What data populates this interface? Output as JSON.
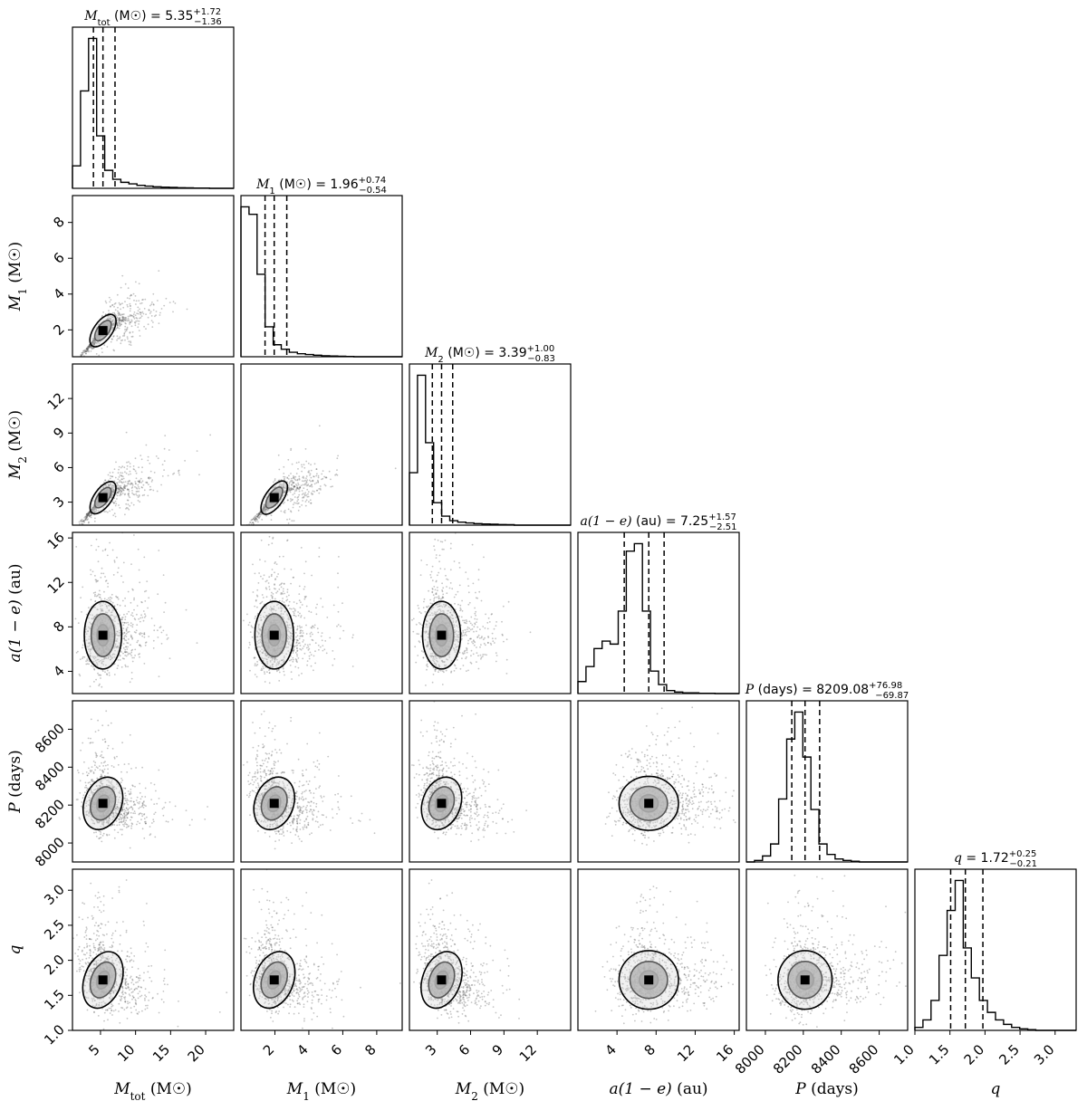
{
  "chart_data": {
    "type": "corner",
    "parameters": [
      {
        "key": "Mtot",
        "sym": "M",
        "sub": "tot",
        "unit": "(M☉)",
        "median": "5.35",
        "plus": "+1.72",
        "minus": "−1.36",
        "range": [
          1,
          24
        ],
        "ticks": [
          5,
          10,
          15,
          20
        ],
        "tick_labels": [
          "5",
          "10",
          "15",
          "20"
        ],
        "hist": [
          0.15,
          0.65,
          1.0,
          0.35,
          0.12,
          0.06,
          0.04,
          0.03,
          0.02,
          0.015,
          0.01,
          0.008,
          0.006,
          0.004,
          0.003,
          0.002,
          0.002,
          0.0,
          0.0,
          0.0
        ],
        "quantiles": [
          3.99,
          5.35,
          7.07
        ]
      },
      {
        "key": "M1",
        "sym": "M",
        "sub": "1",
        "unit": "(M☉)",
        "median": "1.96",
        "plus": "+0.74",
        "minus": "−0.54",
        "range": [
          0,
          9.5
        ],
        "ticks": [
          2,
          4,
          6,
          8
        ],
        "tick_labels": [
          "2",
          "4",
          "6",
          "8"
        ],
        "hist": [
          1.0,
          0.95,
          0.55,
          0.2,
          0.08,
          0.05,
          0.03,
          0.02,
          0.015,
          0.01,
          0.006,
          0.005,
          0.003,
          0.002,
          0.0,
          0.0,
          0.0,
          0.0,
          0.0,
          0.0
        ],
        "quantiles": [
          1.42,
          1.96,
          2.7
        ]
      },
      {
        "key": "M2",
        "sym": "M",
        "sub": "2",
        "unit": "(M☉)",
        "median": "3.39",
        "plus": "+1.00",
        "minus": "−0.83",
        "range": [
          0.5,
          15
        ],
        "ticks": [
          3,
          6,
          9,
          12
        ],
        "tick_labels": [
          "3",
          "6",
          "9",
          "12"
        ],
        "hist": [
          0.35,
          1.0,
          0.55,
          0.15,
          0.06,
          0.03,
          0.02,
          0.015,
          0.01,
          0.008,
          0.006,
          0.004,
          0.003,
          0.0,
          0.0,
          0.0,
          0.0,
          0.0,
          0.0,
          0.0
        ],
        "quantiles": [
          2.56,
          3.39,
          4.39
        ]
      },
      {
        "key": "a1e",
        "sym": "a(1 − e)",
        "sub": "",
        "unit": "(au)",
        "median": "7.25",
        "plus": "+1.57",
        "minus": "−2.51",
        "range": [
          0,
          16.5
        ],
        "ticks": [
          4,
          8,
          12,
          16
        ],
        "tick_labels": [
          "4",
          "8",
          "12",
          "16"
        ],
        "hist": [
          0.08,
          0.18,
          0.3,
          0.35,
          0.33,
          0.55,
          0.95,
          1.0,
          0.55,
          0.15,
          0.06,
          0.02,
          0.01,
          0.005,
          0.005,
          0.002,
          0.002,
          0.0,
          0.0,
          0.0
        ],
        "quantiles": [
          4.74,
          7.25,
          8.82
        ]
      },
      {
        "key": "P",
        "sym": "P",
        "sub": "",
        "unit": "(days)",
        "median": "8209.08",
        "plus": "+76.98",
        "minus": "−69.87",
        "range": [
          7900,
          8750
        ],
        "ticks": [
          8000,
          8200,
          8400,
          8600
        ],
        "tick_labels": [
          "8000",
          "8200",
          "8400",
          "8600"
        ],
        "hist": [
          0.0,
          0.01,
          0.04,
          0.12,
          0.42,
          0.82,
          1.0,
          0.7,
          0.35,
          0.12,
          0.05,
          0.02,
          0.01,
          0.005,
          0.0,
          0.0,
          0.0,
          0.0,
          0.0,
          0.0
        ],
        "quantiles": [
          8139.2,
          8209.1,
          8286.1
        ]
      },
      {
        "key": "q",
        "sym": "q",
        "sub": "",
        "unit": "",
        "median": "1.72",
        "plus": "+0.25",
        "minus": "−0.21",
        "range": [
          1.0,
          3.3
        ],
        "ticks": [
          1.0,
          1.5,
          2.0,
          2.5,
          3.0
        ],
        "tick_labels": [
          "1.0",
          "1.5",
          "2.0",
          "2.5",
          "3.0"
        ],
        "hist": [
          0.02,
          0.07,
          0.2,
          0.5,
          0.8,
          1.0,
          0.55,
          0.35,
          0.2,
          0.12,
          0.07,
          0.04,
          0.02,
          0.01,
          0.005,
          0.0,
          0.0,
          0.0,
          0.0,
          0.0
        ],
        "quantiles": [
          1.51,
          1.72,
          1.97
        ]
      }
    ],
    "ylims": {
      "M1": [
        0.5,
        9.5
      ],
      "M2": [
        1,
        15
      ],
      "a1e": [
        2,
        16.5
      ],
      "P": [
        7900,
        8750
      ],
      "q": [
        1.0,
        3.3
      ]
    },
    "yticks": {
      "M1": {
        "values": [
          2,
          4,
          6,
          8
        ],
        "labels": [
          "2",
          "4",
          "6",
          "8"
        ]
      },
      "M2": {
        "values": [
          3,
          6,
          9,
          12
        ],
        "labels": [
          "3",
          "6",
          "9",
          "12"
        ]
      },
      "a1e": {
        "values": [
          4,
          8,
          12,
          16
        ],
        "labels": [
          "4",
          "8",
          "12",
          "16"
        ]
      },
      "P": {
        "values": [
          8000,
          8200,
          8400,
          8600
        ],
        "labels": [
          "8000",
          "8200",
          "8400",
          "8600"
        ]
      },
      "q": {
        "values": [
          1.0,
          1.5,
          2.0,
          2.5,
          3.0
        ],
        "labels": [
          "1.0",
          "1.5",
          "2.0",
          "2.5",
          "3.0"
        ]
      }
    },
    "colors": {
      "points": "#555555",
      "contours": "#000000",
      "hist": "#000000"
    }
  }
}
